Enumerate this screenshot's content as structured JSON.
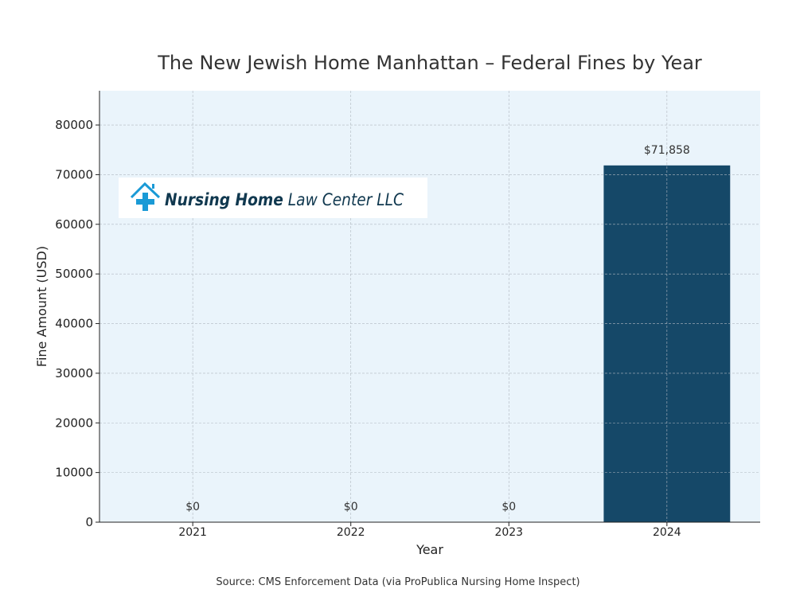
{
  "chart_data": {
    "type": "bar",
    "title": "The New Jewish Home Manhattan – Federal Fines by Year",
    "xlabel": "Year",
    "ylabel": "Fine Amount (USD)",
    "categories": [
      "2021",
      "2022",
      "2023",
      "2024"
    ],
    "values": [
      0,
      0,
      0,
      71858
    ],
    "data_labels": [
      "$0",
      "$0",
      "$0",
      "$71,858"
    ],
    "ylim": [
      0,
      86900
    ],
    "yticks": [
      0,
      10000,
      20000,
      30000,
      40000,
      50000,
      60000,
      70000,
      80000
    ],
    "grid": true,
    "colors": {
      "bar": "#154868",
      "plot_background": "#eaf4fb",
      "grid": "#b0b8c0",
      "text": "#333333"
    }
  },
  "logo": {
    "text_bold": "Nursing Home",
    "text_regular": "Law Center LLC",
    "icon": "house-cross-icon",
    "colors": {
      "icon": "#1a9ad6",
      "text": "#10384f"
    }
  },
  "source": "Source: CMS Enforcement Data (via ProPublica Nursing Home Inspect)"
}
